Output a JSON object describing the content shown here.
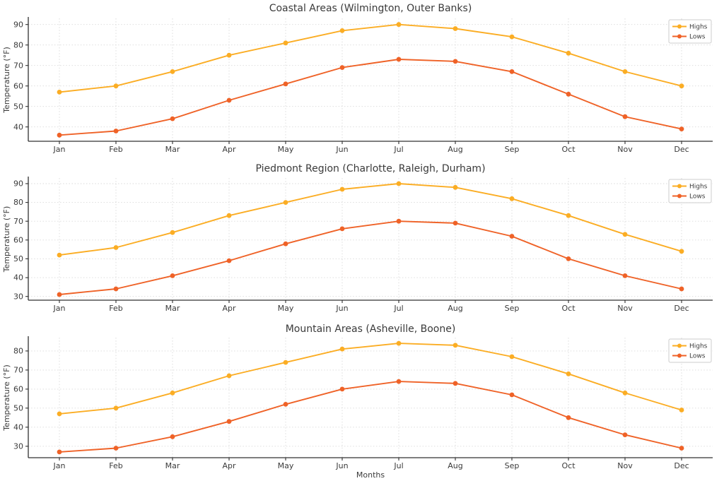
{
  "figure": {
    "xlabel": "Months",
    "background": "#ffffff",
    "axis_color": "#303030",
    "grid_color": "#d9d9d9",
    "text_color": "#3a3a3a",
    "highs_color": "#FBAD24",
    "lows_color": "#EF6227"
  },
  "chart_data": [
    {
      "type": "line",
      "title": "Coastal Areas (Wilmington, Outer Banks)",
      "xlabel": "",
      "ylabel": "Temperature (°F)",
      "categories": [
        "Jan",
        "Feb",
        "Mar",
        "Apr",
        "May",
        "Jun",
        "Jul",
        "Aug",
        "Sep",
        "Oct",
        "Nov",
        "Dec"
      ],
      "series": [
        {
          "name": "Highs",
          "color": "#FBAD24",
          "values": [
            57,
            60,
            67,
            75,
            81,
            87,
            90,
            88,
            84,
            76,
            67,
            60
          ]
        },
        {
          "name": "Lows",
          "color": "#EF6227",
          "values": [
            36,
            38,
            44,
            53,
            61,
            69,
            73,
            72,
            67,
            56,
            45,
            39
          ]
        }
      ],
      "yticks": [
        40,
        50,
        60,
        70,
        80,
        90
      ],
      "ylim": [
        33,
        93
      ],
      "grid": true,
      "legend_position": "upper right"
    },
    {
      "type": "line",
      "title": "Piedmont Region (Charlotte, Raleigh, Durham)",
      "xlabel": "",
      "ylabel": "Temperature (°F)",
      "categories": [
        "Jan",
        "Feb",
        "Mar",
        "Apr",
        "May",
        "Jun",
        "Jul",
        "Aug",
        "Sep",
        "Oct",
        "Nov",
        "Dec"
      ],
      "series": [
        {
          "name": "Highs",
          "color": "#FBAD24",
          "values": [
            52,
            56,
            64,
            73,
            80,
            87,
            90,
            88,
            82,
            73,
            63,
            54
          ]
        },
        {
          "name": "Lows",
          "color": "#EF6227",
          "values": [
            31,
            34,
            41,
            49,
            58,
            66,
            70,
            69,
            62,
            50,
            41,
            34
          ]
        }
      ],
      "yticks": [
        30,
        40,
        50,
        60,
        70,
        80,
        90
      ],
      "ylim": [
        28,
        93
      ],
      "grid": true,
      "legend_position": "upper right"
    },
    {
      "type": "line",
      "title": "Mountain Areas (Asheville, Boone)",
      "xlabel": "Months",
      "ylabel": "Temperature (°F)",
      "categories": [
        "Jan",
        "Feb",
        "Mar",
        "Apr",
        "May",
        "Jun",
        "Jul",
        "Aug",
        "Sep",
        "Oct",
        "Nov",
        "Dec"
      ],
      "series": [
        {
          "name": "Highs",
          "color": "#FBAD24",
          "values": [
            47,
            50,
            58,
            67,
            74,
            81,
            84,
            83,
            77,
            68,
            58,
            49
          ]
        },
        {
          "name": "Lows",
          "color": "#EF6227",
          "values": [
            27,
            29,
            35,
            43,
            52,
            60,
            64,
            63,
            57,
            45,
            36,
            29
          ]
        }
      ],
      "yticks": [
        30,
        40,
        50,
        60,
        70,
        80
      ],
      "ylim": [
        24,
        87
      ],
      "grid": true,
      "legend_position": "upper right"
    }
  ],
  "legend": {
    "entries": [
      "Highs",
      "Lows"
    ]
  }
}
